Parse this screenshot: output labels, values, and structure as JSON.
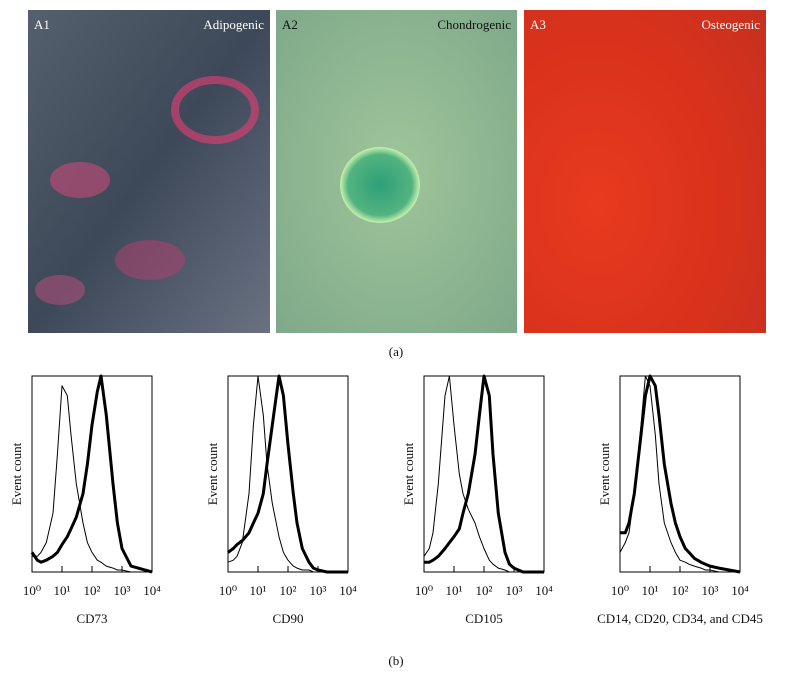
{
  "panel_a": {
    "images": [
      {
        "label": "A1",
        "title": "Adipogenic"
      },
      {
        "label": "A2",
        "title": "Chondrogenic"
      },
      {
        "label": "A3",
        "title": "Osteogenic"
      }
    ],
    "caption": "(a)"
  },
  "chart_data": [
    {
      "type": "line",
      "ylabel": "Event count",
      "xlabel": "CD73",
      "xscale": "log",
      "xlim": [
        1,
        10000
      ],
      "xticks": [
        {
          "value": 1,
          "label": "10⁰"
        },
        {
          "value": 10,
          "label": "10¹"
        },
        {
          "value": 100,
          "label": "10²"
        },
        {
          "value": 1000,
          "label": "10³"
        },
        {
          "value": 10000,
          "label": "10⁴"
        }
      ],
      "ylim": [
        0,
        100
      ],
      "x": [
        1,
        1.5,
        2,
        3,
        5,
        7,
        10,
        15,
        20,
        30,
        50,
        70,
        100,
        150,
        200,
        300,
        500,
        700,
        1000,
        2000,
        10000
      ],
      "series": [
        {
          "color": "#000000",
          "line_width": 1,
          "values": [
            8,
            8,
            10,
            15,
            30,
            60,
            95,
            90,
            70,
            45,
            25,
            15,
            10,
            6,
            5,
            3,
            2,
            1,
            1,
            0,
            0
          ]
        },
        {
          "color": "#000000",
          "line_width": 3,
          "values": [
            10,
            6,
            5,
            6,
            8,
            10,
            14,
            18,
            22,
            28,
            40,
            55,
            75,
            92,
            100,
            80,
            45,
            25,
            12,
            3,
            0
          ]
        }
      ]
    },
    {
      "type": "line",
      "ylabel": "Event count",
      "xlabel": "CD90",
      "xscale": "log",
      "xlim": [
        1,
        10000
      ],
      "xticks": [
        {
          "value": 1,
          "label": "10⁰"
        },
        {
          "value": 10,
          "label": "10¹"
        },
        {
          "value": 100,
          "label": "10²"
        },
        {
          "value": 1000,
          "label": "10³"
        },
        {
          "value": 10000,
          "label": "10⁴"
        }
      ],
      "ylim": [
        0,
        100
      ],
      "x": [
        1,
        1.5,
        2,
        3,
        5,
        7,
        10,
        15,
        20,
        30,
        50,
        70,
        100,
        150,
        200,
        300,
        500,
        700,
        1000,
        2000,
        10000
      ],
      "series": [
        {
          "color": "#000000",
          "line_width": 1,
          "values": [
            5,
            6,
            8,
            15,
            40,
            75,
            100,
            80,
            55,
            35,
            18,
            10,
            6,
            3,
            2,
            1,
            1,
            0,
            0,
            0,
            0
          ]
        },
        {
          "color": "#000000",
          "line_width": 3,
          "values": [
            10,
            12,
            14,
            16,
            20,
            25,
            30,
            40,
            55,
            75,
            100,
            90,
            65,
            40,
            25,
            12,
            5,
            2,
            1,
            0,
            0
          ]
        }
      ]
    },
    {
      "type": "line",
      "ylabel": "Event count",
      "xlabel": "CD105",
      "xscale": "log",
      "xlim": [
        1,
        10000
      ],
      "xticks": [
        {
          "value": 1,
          "label": "10⁰"
        },
        {
          "value": 10,
          "label": "10¹"
        },
        {
          "value": 100,
          "label": "10²"
        },
        {
          "value": 1000,
          "label": "10³"
        },
        {
          "value": 10000,
          "label": "10⁴"
        }
      ],
      "ylim": [
        0,
        100
      ],
      "x": [
        1,
        1.5,
        2,
        3,
        5,
        7,
        10,
        15,
        20,
        30,
        50,
        70,
        100,
        150,
        200,
        300,
        500,
        700,
        1000,
        2000,
        10000
      ],
      "series": [
        {
          "color": "#000000",
          "line_width": 1,
          "values": [
            8,
            12,
            20,
            45,
            90,
            100,
            75,
            50,
            40,
            32,
            25,
            18,
            12,
            6,
            4,
            2,
            1,
            0,
            0,
            0,
            0
          ]
        },
        {
          "color": "#000000",
          "line_width": 3,
          "values": [
            5,
            5,
            6,
            8,
            12,
            15,
            18,
            22,
            30,
            40,
            60,
            80,
            100,
            90,
            60,
            30,
            10,
            4,
            2,
            0,
            0
          ]
        }
      ]
    },
    {
      "type": "line",
      "ylabel": "Event count",
      "xlabel": "CD14, CD20, CD34, and CD45",
      "xscale": "log",
      "xlim": [
        1,
        10000
      ],
      "xticks": [
        {
          "value": 1,
          "label": "10⁰"
        },
        {
          "value": 10,
          "label": "10¹"
        },
        {
          "value": 100,
          "label": "10²"
        },
        {
          "value": 1000,
          "label": "10³"
        },
        {
          "value": 10000,
          "label": "10⁴"
        }
      ],
      "ylim": [
        0,
        100
      ],
      "x": [
        1,
        1.5,
        2,
        3,
        5,
        7,
        10,
        15,
        20,
        30,
        50,
        70,
        100,
        150,
        200,
        300,
        500,
        700,
        1000,
        2000,
        10000
      ],
      "series": [
        {
          "color": "#000000",
          "line_width": 1,
          "values": [
            10,
            15,
            20,
            40,
            75,
            100,
            95,
            70,
            45,
            25,
            15,
            10,
            6,
            5,
            4,
            3,
            2,
            1,
            1,
            0,
            0
          ]
        },
        {
          "color": "#000000",
          "line_width": 3,
          "values": [
            20,
            20,
            25,
            40,
            70,
            90,
            100,
            95,
            80,
            55,
            35,
            25,
            18,
            12,
            10,
            7,
            5,
            4,
            3,
            2,
            0
          ]
        }
      ]
    }
  ],
  "caption_b": "(b)"
}
